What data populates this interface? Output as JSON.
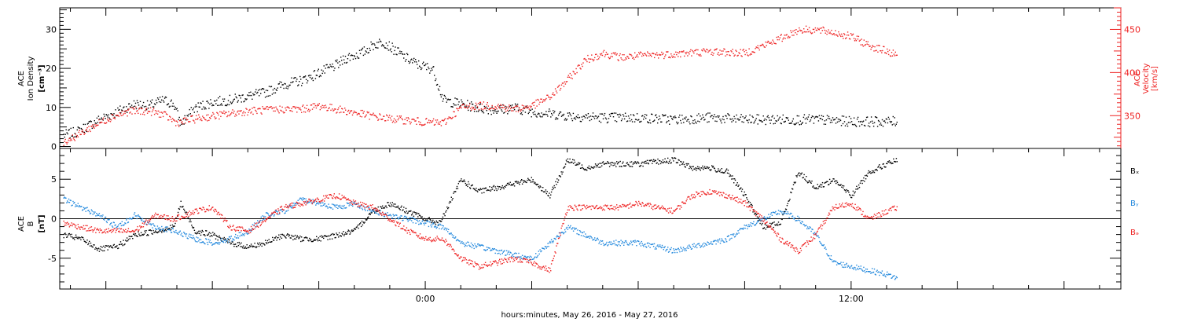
{
  "xlabel": "hours:minutes, May 26, 2016 - May 27, 2016",
  "chart_data": [
    {
      "type": "scatter",
      "panel": "top",
      "y_left_label": [
        "ACE",
        "Ion Density",
        "[cm⁻³]"
      ],
      "y_right_label": [
        "ACE",
        "Velocity",
        "[km/s]"
      ],
      "x_ticks": [
        {
          "value": 0,
          "label": "0:00"
        },
        {
          "value": 12,
          "label": "12:00"
        }
      ],
      "xlim": [
        -10.3,
        19.6
      ],
      "y_left_ticks": [
        0,
        10,
        20,
        30
      ],
      "y_left_lim": [
        -0.5,
        35.5
      ],
      "y_right_ticks": [
        350,
        400,
        450
      ],
      "y_right_lim": [
        312,
        475
      ],
      "series": [
        {
          "color": "#000000",
          "axis": "left",
          "points": [
            [
              -10.2,
              3
            ],
            [
              -9.8,
              4
            ],
            [
              -9.2,
              7
            ],
            [
              -8.7,
              9
            ],
            [
              -8.2,
              11
            ],
            [
              -7.8,
              10.5
            ],
            [
              -7.4,
              12
            ],
            [
              -7.1,
              11
            ],
            [
              -6.9,
              6
            ],
            [
              -6.5,
              10
            ],
            [
              -6.0,
              11.5
            ],
            [
              -5.5,
              12
            ],
            [
              -5.0,
              13
            ],
            [
              -4.5,
              14
            ],
            [
              -4.0,
              16
            ],
            [
              -3.5,
              17
            ],
            [
              -3.0,
              19
            ],
            [
              -2.5,
              21
            ],
            [
              -2.2,
              23
            ],
            [
              -1.8,
              24
            ],
            [
              -1.5,
              26
            ],
            [
              -1.2,
              27
            ],
            [
              -0.9,
              25
            ],
            [
              -0.6,
              23
            ],
            [
              -0.4,
              22
            ],
            [
              -0.2,
              21
            ],
            [
              0.2,
              20
            ],
            [
              0.5,
              12
            ],
            [
              1.0,
              11
            ],
            [
              1.5,
              10
            ],
            [
              2.0,
              9.5
            ],
            [
              2.5,
              10
            ],
            [
              3.0,
              9
            ],
            [
              3.5,
              8.5
            ],
            [
              4.0,
              8
            ],
            [
              5.0,
              7.5
            ],
            [
              6.0,
              7.5
            ],
            [
              7.0,
              7
            ],
            [
              8.0,
              7.5
            ],
            [
              9.0,
              7
            ],
            [
              10.0,
              7
            ],
            [
              11.0,
              7
            ],
            [
              12.0,
              6.5
            ],
            [
              12.6,
              6.5
            ],
            [
              13.3,
              6.5
            ]
          ]
        },
        {
          "color": "#ee2222",
          "axis": "right",
          "points": [
            [
              -10.2,
              320
            ],
            [
              -9.8,
              328
            ],
            [
              -9.3,
              340
            ],
            [
              -8.8,
              350
            ],
            [
              -8.3,
              356
            ],
            [
              -7.8,
              356
            ],
            [
              -7.4,
              352
            ],
            [
              -7.0,
              342
            ],
            [
              -6.6,
              346
            ],
            [
              -6.0,
              350
            ],
            [
              -5.0,
              356
            ],
            [
              -4.0,
              358
            ],
            [
              -3.5,
              358
            ],
            [
              -3.0,
              362
            ],
            [
              -2.5,
              358
            ],
            [
              -2.0,
              354
            ],
            [
              -1.5,
              350
            ],
            [
              -1.0,
              347
            ],
            [
              -0.5,
              345
            ],
            [
              0.0,
              343
            ],
            [
              0.5,
              342
            ],
            [
              1.0,
              360
            ],
            [
              1.5,
              362
            ],
            [
              2.0,
              362
            ],
            [
              2.5,
              358
            ],
            [
              3.0,
              362
            ],
            [
              3.5,
              372
            ],
            [
              4.0,
              392
            ],
            [
              4.5,
              415
            ],
            [
              5.0,
              423
            ],
            [
              5.5,
              418
            ],
            [
              6.0,
              420
            ],
            [
              7.0,
              422
            ],
            [
              8.0,
              425
            ],
            [
              9.0,
              423
            ],
            [
              10.0,
              440
            ],
            [
              10.5,
              450
            ],
            [
              11.0,
              450
            ],
            [
              11.5,
              447
            ],
            [
              12.0,
              442
            ],
            [
              12.5,
              432
            ],
            [
              13.0,
              425
            ],
            [
              13.3,
              420
            ]
          ]
        }
      ]
    },
    {
      "type": "scatter",
      "panel": "bottom",
      "y_label": [
        "ACE",
        "B",
        "[nT]"
      ],
      "x_ticks": [
        {
          "value": 0,
          "label": "0:00"
        },
        {
          "value": 12,
          "label": "12:00"
        }
      ],
      "xlim": [
        -10.3,
        19.6
      ],
      "y_ticks": [
        -5,
        0,
        5
      ],
      "ylim": [
        -8.9,
        8.9
      ],
      "zero_line": true,
      "series": [
        {
          "name": "Bₓ",
          "color": "#000000",
          "points": [
            [
              -10.2,
              -2
            ],
            [
              -9.7,
              -2.5
            ],
            [
              -9.2,
              -3.8
            ],
            [
              -8.7,
              -3.5
            ],
            [
              -8.2,
              -2
            ],
            [
              -7.6,
              -1.5
            ],
            [
              -7.1,
              -1
            ],
            [
              -6.9,
              2
            ],
            [
              -6.5,
              -1.5
            ],
            [
              -6.0,
              -2
            ],
            [
              -5.5,
              -3
            ],
            [
              -5.0,
              -3.5
            ],
            [
              -4.5,
              -3
            ],
            [
              -4.0,
              -2
            ],
            [
              -3.5,
              -2.5
            ],
            [
              -3.0,
              -2.5
            ],
            [
              -2.5,
              -2
            ],
            [
              -2.0,
              -1.5
            ],
            [
              -1.5,
              1
            ],
            [
              -1.0,
              2
            ],
            [
              -0.5,
              1
            ],
            [
              0.0,
              0
            ],
            [
              0.4,
              -0.5
            ],
            [
              1.0,
              5
            ],
            [
              1.5,
              3.5
            ],
            [
              2.0,
              4
            ],
            [
              2.5,
              4.5
            ],
            [
              3.0,
              5
            ],
            [
              3.5,
              3
            ],
            [
              4.0,
              7.5
            ],
            [
              4.5,
              6.5
            ],
            [
              5.0,
              7
            ],
            [
              6.0,
              7
            ],
            [
              7.0,
              7.5
            ],
            [
              7.5,
              6.5
            ],
            [
              8.0,
              6.5
            ],
            [
              8.5,
              6
            ],
            [
              9.0,
              3
            ],
            [
              9.5,
              -1
            ],
            [
              10.0,
              -0.5
            ],
            [
              10.5,
              6
            ],
            [
              11.0,
              4
            ],
            [
              11.5,
              5
            ],
            [
              12.0,
              3
            ],
            [
              12.5,
              6
            ],
            [
              13.0,
              7
            ],
            [
              13.3,
              7.5
            ]
          ]
        },
        {
          "name": "Bᵧ",
          "color": "#2288dd",
          "points": [
            [
              -10.2,
              2.5
            ],
            [
              -9.7,
              1.5
            ],
            [
              -9.2,
              0.5
            ],
            [
              -8.7,
              -1
            ],
            [
              -8.2,
              0.5
            ],
            [
              -7.6,
              -1
            ],
            [
              -7.1,
              -1.5
            ],
            [
              -6.5,
              -2.5
            ],
            [
              -6.0,
              -3
            ],
            [
              -5.5,
              -2.5
            ],
            [
              -5.0,
              -1.5
            ],
            [
              -4.5,
              0.5
            ],
            [
              -4.0,
              1
            ],
            [
              -3.5,
              2.5
            ],
            [
              -3.0,
              2
            ],
            [
              -2.5,
              1.5
            ],
            [
              -2.0,
              2
            ],
            [
              -1.5,
              1
            ],
            [
              -1.0,
              0.5
            ],
            [
              -0.5,
              0
            ],
            [
              0.0,
              -0.5
            ],
            [
              0.5,
              -1
            ],
            [
              1.0,
              -3
            ],
            [
              1.5,
              -3.5
            ],
            [
              2.0,
              -4
            ],
            [
              2.5,
              -4.5
            ],
            [
              3.0,
              -5
            ],
            [
              3.5,
              -3
            ],
            [
              4.0,
              -1
            ],
            [
              4.5,
              -2
            ],
            [
              5.0,
              -3
            ],
            [
              6.0,
              -3
            ],
            [
              7.0,
              -4
            ],
            [
              8.0,
              -3
            ],
            [
              8.5,
              -2.5
            ],
            [
              9.0,
              -1
            ],
            [
              9.5,
              0
            ],
            [
              10.0,
              1
            ],
            [
              10.5,
              0
            ],
            [
              11.0,
              -2
            ],
            [
              11.5,
              -5.5
            ],
            [
              12.0,
              -6
            ],
            [
              12.5,
              -6.5
            ],
            [
              13.0,
              -7
            ],
            [
              13.3,
              -7.5
            ]
          ]
        },
        {
          "name": "Bₔ",
          "color": "#ee2222",
          "points": [
            [
              -10.2,
              -0.5
            ],
            [
              -9.7,
              -1
            ],
            [
              -9.2,
              -1.5
            ],
            [
              -8.7,
              -1.5
            ],
            [
              -8.2,
              -1.5
            ],
            [
              -7.6,
              0.5
            ],
            [
              -7.1,
              0
            ],
            [
              -6.5,
              1
            ],
            [
              -6.0,
              1.5
            ],
            [
              -5.5,
              -1
            ],
            [
              -5.0,
              -1.5
            ],
            [
              -4.5,
              0
            ],
            [
              -4.0,
              1.5
            ],
            [
              -3.5,
              2
            ],
            [
              -3.0,
              2.5
            ],
            [
              -2.5,
              3
            ],
            [
              -2.0,
              2
            ],
            [
              -1.5,
              1.5
            ],
            [
              -1.0,
              0
            ],
            [
              -0.5,
              -1.5
            ],
            [
              0.0,
              -2.5
            ],
            [
              0.5,
              -2.5
            ],
            [
              1.0,
              -5
            ],
            [
              1.5,
              -6
            ],
            [
              2.0,
              -5.5
            ],
            [
              2.5,
              -5
            ],
            [
              3.0,
              -5.5
            ],
            [
              3.5,
              -6.5
            ],
            [
              4.0,
              1.5
            ],
            [
              5.0,
              1.5
            ],
            [
              5.5,
              1.5
            ],
            [
              6.0,
              2
            ],
            [
              6.5,
              1.5
            ],
            [
              7.0,
              1
            ],
            [
              7.5,
              3
            ],
            [
              8.0,
              3.5
            ],
            [
              8.5,
              3
            ],
            [
              9.0,
              2
            ],
            [
              9.5,
              0
            ],
            [
              10.0,
              -2.5
            ],
            [
              10.5,
              -4
            ],
            [
              11.0,
              -2
            ],
            [
              11.5,
              1.5
            ],
            [
              12.0,
              2
            ],
            [
              12.5,
              0
            ],
            [
              13.0,
              1
            ],
            [
              13.3,
              1.5
            ]
          ]
        }
      ]
    }
  ]
}
